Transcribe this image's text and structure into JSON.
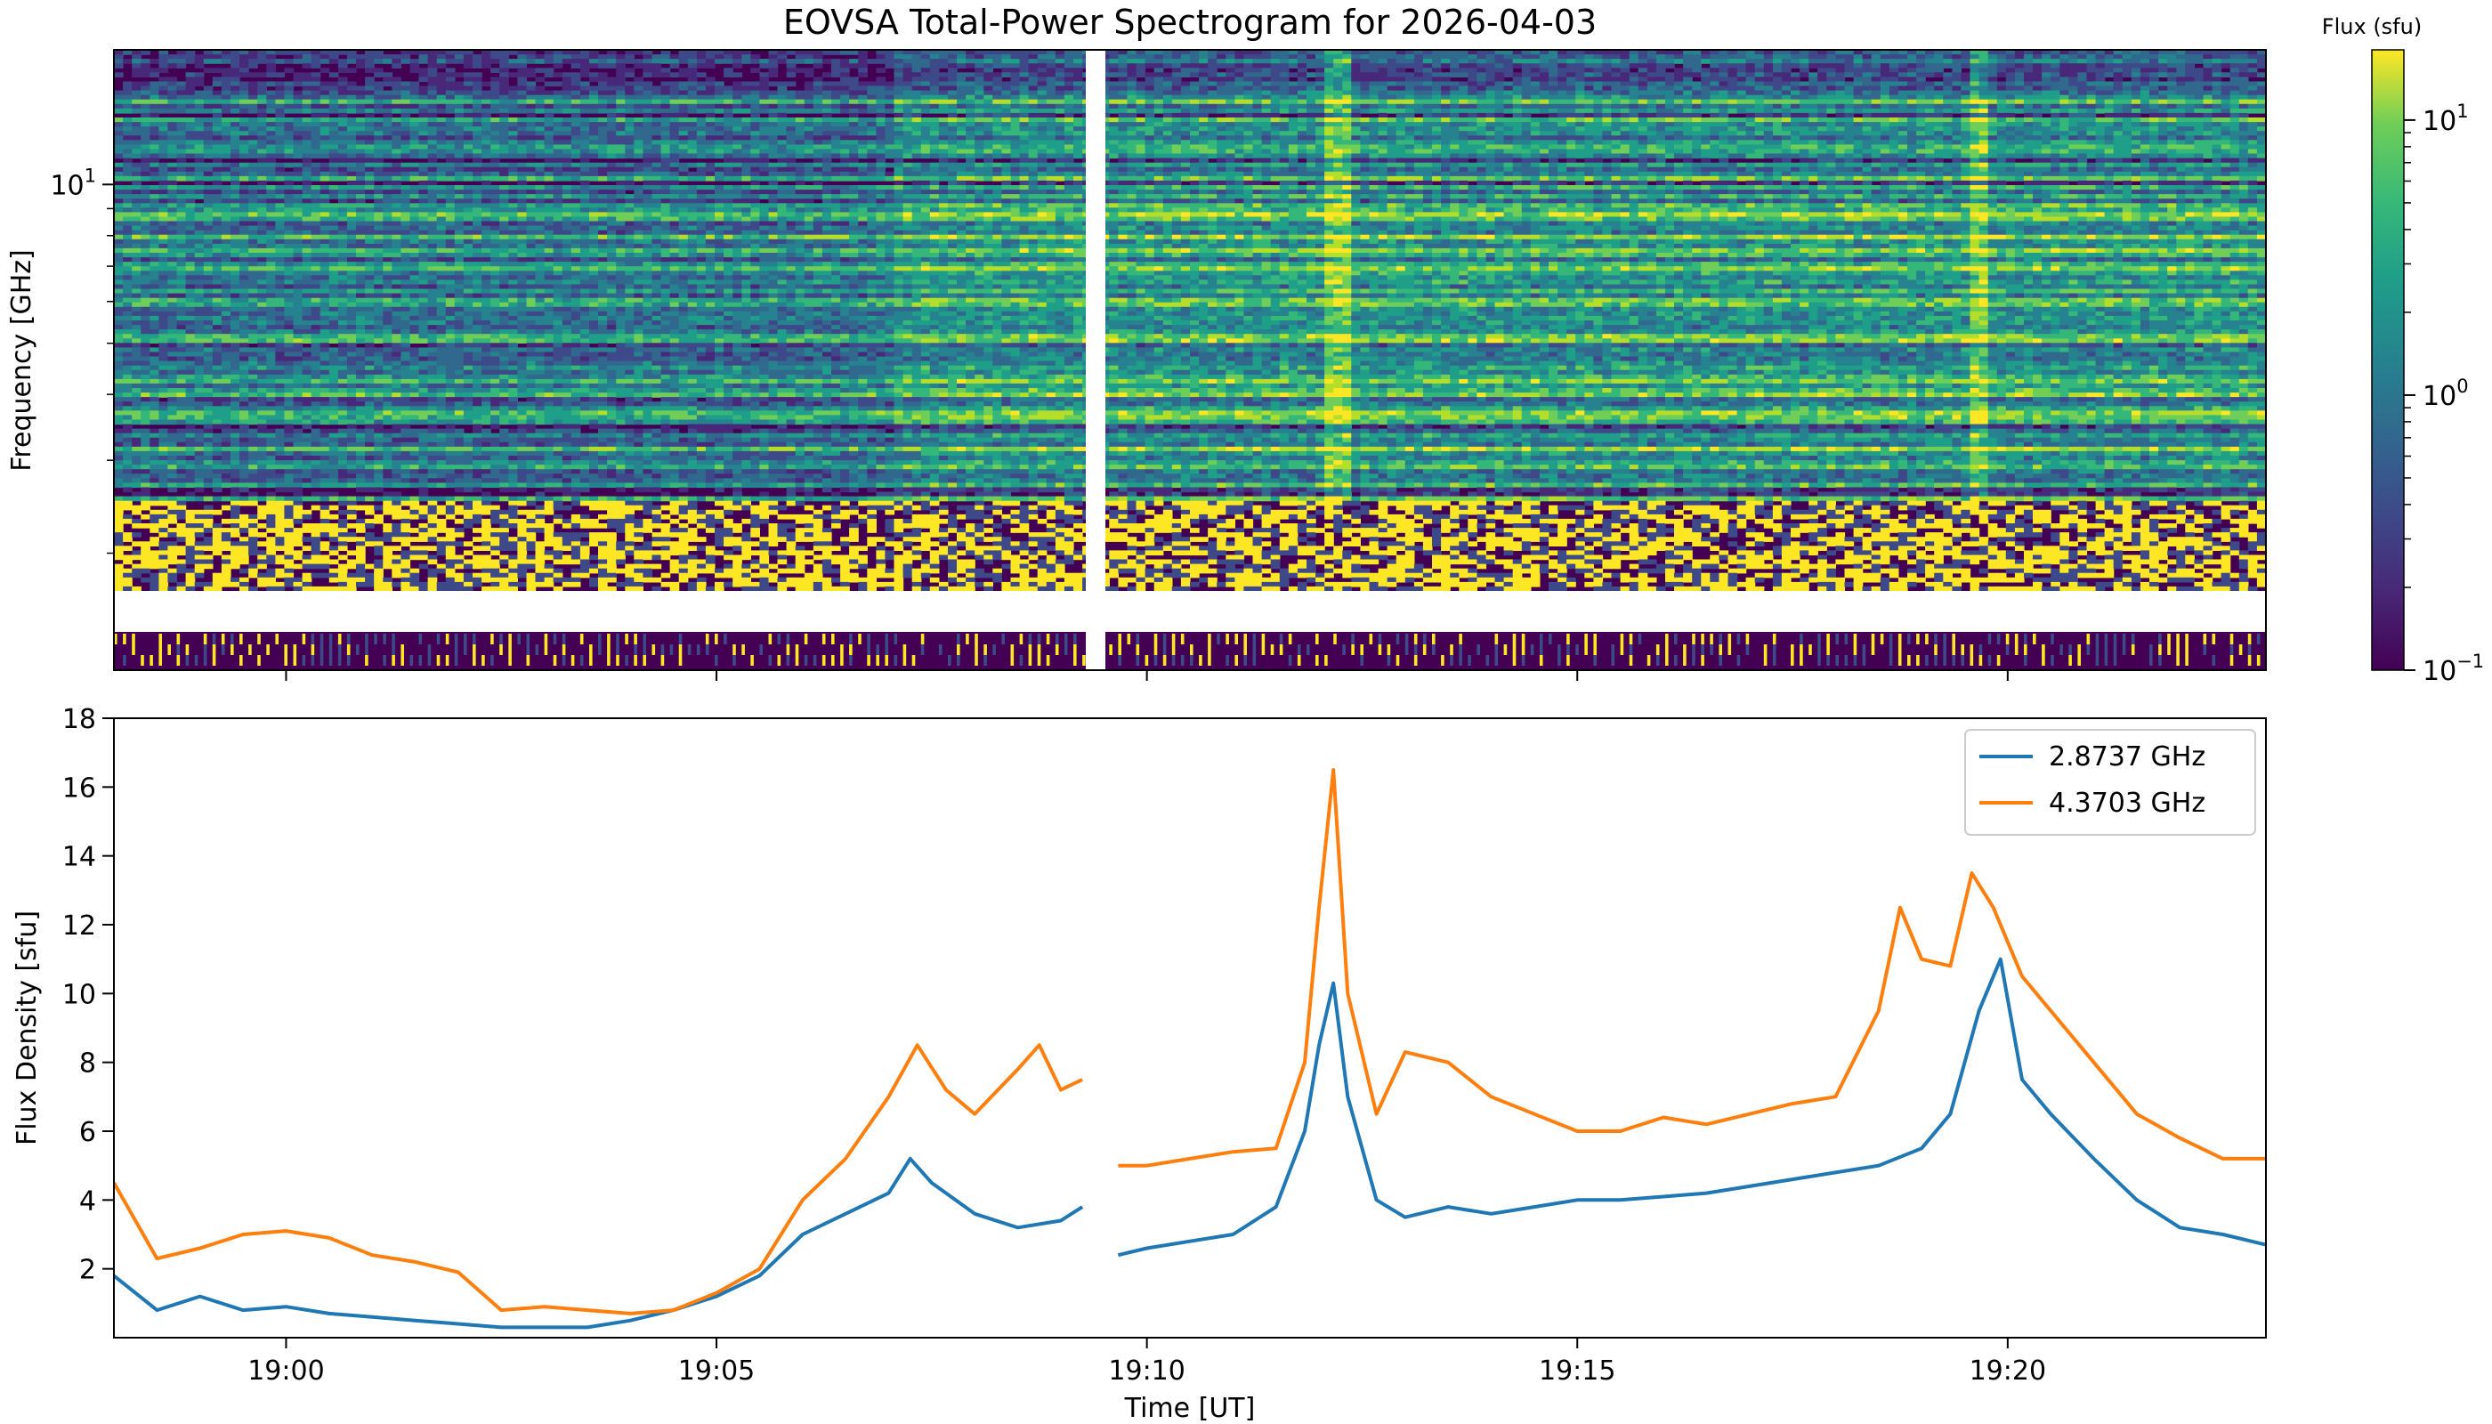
{
  "figure": {
    "title": "EOVSA Total-Power Spectrogram for 2026-04-03",
    "time_axis_label": "Time [UT]",
    "time_ticks": [
      "19:00",
      "19:05",
      "19:10",
      "19:15",
      "19:20"
    ]
  },
  "chart_data": [
    {
      "type": "heatmap",
      "title": "EOVSA Total-Power Spectrogram for 2026-04-03",
      "xlabel": "",
      "ylabel": "Frequency [GHz]",
      "y_scale": "log",
      "y_ticks": [
        {
          "label": "10",
          "exponent": "1"
        }
      ],
      "x_range": [
        "18:58:00",
        "19:23:00"
      ],
      "y_range_ghz": [
        1.2,
        18.0
      ],
      "colormap": "viridis",
      "color_scale": "log",
      "colorbar": {
        "label": "Flux (sfu)",
        "range": [
          0.1,
          18
        ],
        "ticks": [
          {
            "label": "10",
            "exponent": "−1"
          },
          {
            "label": "10",
            "exponent": "0"
          },
          {
            "label": "10",
            "exponent": "1"
          }
        ]
      },
      "data_gaps": [
        {
          "type": "time",
          "from": "19:09:20",
          "to": "19:09:35"
        },
        {
          "type": "frequency_ghz",
          "from": "1.4",
          "to": "1.65"
        }
      ],
      "features": [
        {
          "time": "19:12:12",
          "description": "broadband burst"
        },
        {
          "time": "19:19:40",
          "description": "broadband burst"
        }
      ],
      "colors": {
        "low": "#440154",
        "mid": "#21918c",
        "high": "#fde725"
      }
    },
    {
      "type": "line",
      "xlabel": "Time [UT]",
      "ylabel": "Flux Density [sfu]",
      "ylim": [
        0,
        18
      ],
      "y_ticks": [
        2,
        4,
        6,
        8,
        10,
        12,
        14,
        16,
        18
      ],
      "x_ticks": [
        "19:00",
        "19:05",
        "19:10",
        "19:15",
        "19:20"
      ],
      "x_range": [
        "18:58:00",
        "19:23:00"
      ],
      "legend_position": "top-right",
      "grid": false,
      "gap": {
        "from": "19:09:17",
        "to": "19:09:37"
      },
      "series": [
        {
          "name": "2.8737 GHz",
          "color": "#1f77b4",
          "x": [
            "18:58:00",
            "18:58:30",
            "18:59:00",
            "18:59:30",
            "19:00:00",
            "19:00:30",
            "19:01:00",
            "19:01:30",
            "19:02:00",
            "19:02:30",
            "19:03:00",
            "19:03:30",
            "19:04:00",
            "19:04:30",
            "19:05:00",
            "19:05:30",
            "19:06:00",
            "19:06:30",
            "19:07:00",
            "19:07:15",
            "19:07:30",
            "19:08:00",
            "19:08:30",
            "19:09:00",
            "19:09:15",
            "19:09:40",
            "19:10:00",
            "19:10:30",
            "19:11:00",
            "19:11:30",
            "19:11:50",
            "19:12:00",
            "19:12:10",
            "19:12:20",
            "19:12:40",
            "19:13:00",
            "19:13:30",
            "19:14:00",
            "19:14:30",
            "19:15:00",
            "19:15:30",
            "19:16:00",
            "19:16:30",
            "19:17:00",
            "19:17:30",
            "19:18:00",
            "19:18:30",
            "19:19:00",
            "19:19:20",
            "19:19:40",
            "19:19:55",
            "19:20:10",
            "19:20:30",
            "19:21:00",
            "19:21:30",
            "19:22:00",
            "19:22:30",
            "19:23:00"
          ],
          "values": [
            1.8,
            0.8,
            1.2,
            0.8,
            0.9,
            0.7,
            0.6,
            0.5,
            0.4,
            0.3,
            0.3,
            0.3,
            0.5,
            0.8,
            1.2,
            1.8,
            3.0,
            3.6,
            4.2,
            5.2,
            4.5,
            3.6,
            3.2,
            3.4,
            3.8,
            2.4,
            2.6,
            2.8,
            3.0,
            3.8,
            6.0,
            8.5,
            10.3,
            7.0,
            4.0,
            3.5,
            3.8,
            3.6,
            3.8,
            4.0,
            4.0,
            4.1,
            4.2,
            4.4,
            4.6,
            4.8,
            5.0,
            5.5,
            6.5,
            9.5,
            11.0,
            7.5,
            6.5,
            5.2,
            4.0,
            3.2,
            3.0,
            2.7
          ]
        },
        {
          "name": "4.3703 GHz",
          "color": "#ff7f0e",
          "x": [
            "18:58:00",
            "18:58:30",
            "18:59:00",
            "18:59:30",
            "19:00:00",
            "19:00:30",
            "19:01:00",
            "19:01:30",
            "19:02:00",
            "19:02:30",
            "19:03:00",
            "19:03:30",
            "19:04:00",
            "19:04:30",
            "19:05:00",
            "19:05:30",
            "19:06:00",
            "19:06:30",
            "19:07:00",
            "19:07:20",
            "19:07:40",
            "19:08:00",
            "19:08:30",
            "19:08:45",
            "19:09:00",
            "19:09:15",
            "19:09:40",
            "19:10:00",
            "19:10:30",
            "19:11:00",
            "19:11:30",
            "19:11:50",
            "19:12:00",
            "19:12:10",
            "19:12:20",
            "19:12:40",
            "19:13:00",
            "19:13:30",
            "19:14:00",
            "19:14:30",
            "19:15:00",
            "19:15:30",
            "19:16:00",
            "19:16:30",
            "19:17:00",
            "19:17:30",
            "19:18:00",
            "19:18:30",
            "19:18:45",
            "19:19:00",
            "19:19:20",
            "19:19:35",
            "19:19:50",
            "19:20:10",
            "19:20:30",
            "19:21:00",
            "19:21:30",
            "19:22:00",
            "19:22:30",
            "19:23:00"
          ],
          "values": [
            4.5,
            2.3,
            2.6,
            3.0,
            3.1,
            2.9,
            2.4,
            2.2,
            1.9,
            0.8,
            0.9,
            0.8,
            0.7,
            0.8,
            1.3,
            2.0,
            4.0,
            5.2,
            7.0,
            8.5,
            7.2,
            6.5,
            7.8,
            8.5,
            7.2,
            7.5,
            5.0,
            5.0,
            5.2,
            5.4,
            5.5,
            8.0,
            12.5,
            16.5,
            10.0,
            6.5,
            8.3,
            8.0,
            7.0,
            6.5,
            6.0,
            6.0,
            6.4,
            6.2,
            6.5,
            6.8,
            7.0,
            9.5,
            12.5,
            11.0,
            10.8,
            13.5,
            12.5,
            10.5,
            9.5,
            8.0,
            6.5,
            5.8,
            5.2,
            5.2
          ]
        }
      ]
    }
  ]
}
